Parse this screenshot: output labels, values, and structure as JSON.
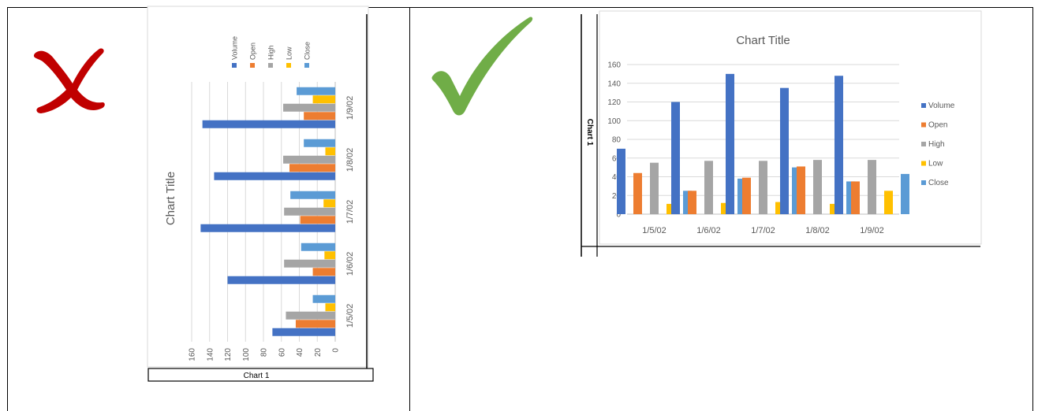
{
  "comparison": {
    "wrong_mark": {
      "icon": "cross-mark-icon",
      "color": "#c00000"
    },
    "right_mark": {
      "icon": "check-mark-icon",
      "color": "#70ad47"
    }
  },
  "left_panel": {
    "frame_label": "Chart 1",
    "chart_data": {
      "type": "bar",
      "orientation": "rotated (page turned 90° counter-clockwise)",
      "title": "Chart Title",
      "categories": [
        "1/5/02",
        "1/6/02",
        "1/7/02",
        "1/8/02",
        "1/9/02"
      ],
      "series": [
        {
          "name": "Volume",
          "color": "#4472c4",
          "values": [
            70,
            120,
            150,
            135,
            148
          ]
        },
        {
          "name": "Open",
          "color": "#ed7d31",
          "values": [
            44,
            25,
            39,
            51,
            35
          ]
        },
        {
          "name": "High",
          "color": "#a5a5a5",
          "values": [
            55,
            57,
            57,
            58,
            58
          ]
        },
        {
          "name": "Low",
          "color": "#ffc000",
          "values": [
            11,
            12,
            13,
            11,
            25
          ]
        },
        {
          "name": "Close",
          "color": "#5b9bd5",
          "values": [
            25,
            38,
            50,
            35,
            43
          ]
        }
      ],
      "ylim": [
        0,
        160
      ],
      "yticks": [
        0,
        20,
        40,
        60,
        80,
        100,
        120,
        140,
        160
      ],
      "grid": true,
      "legend": "top"
    }
  },
  "right_panel": {
    "frame_label": "Chart 1",
    "chart_data": {
      "type": "bar",
      "title": "Chart Title",
      "categories": [
        "1/5/02",
        "1/6/02",
        "1/7/02",
        "1/8/02",
        "1/9/02"
      ],
      "series": [
        {
          "name": "Volume",
          "color": "#4472c4",
          "values": [
            70,
            120,
            150,
            135,
            148
          ]
        },
        {
          "name": "Open",
          "color": "#ed7d31",
          "values": [
            44,
            25,
            39,
            51,
            35
          ]
        },
        {
          "name": "High",
          "color": "#a5a5a5",
          "values": [
            55,
            57,
            57,
            58,
            58
          ]
        },
        {
          "name": "Low",
          "color": "#ffc000",
          "values": [
            11,
            12,
            13,
            11,
            25
          ]
        },
        {
          "name": "Close",
          "color": "#5b9bd5",
          "values": [
            25,
            38,
            50,
            35,
            43
          ]
        }
      ],
      "ylim": [
        0,
        160
      ],
      "yticks": [
        0,
        20,
        40,
        60,
        80,
        100,
        120,
        140,
        160
      ],
      "grid": true,
      "legend": "right"
    }
  }
}
